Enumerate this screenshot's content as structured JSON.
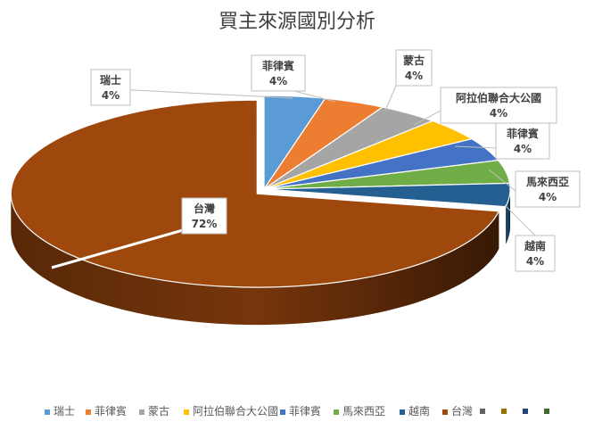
{
  "chart_data": {
    "type": "pie",
    "title": "買主來源國別分析",
    "slices": [
      {
        "label": "瑞士",
        "value": 4,
        "value_label": "4%",
        "color": "#5B9BD5"
      },
      {
        "label": "菲律賓",
        "value": 4,
        "value_label": "4%",
        "color": "#ED7D31"
      },
      {
        "label": "蒙古",
        "value": 4,
        "value_label": "4%",
        "color": "#A5A5A5"
      },
      {
        "label": "阿拉伯聯合大公國",
        "value": 4,
        "value_label": "4%",
        "color": "#FFC000"
      },
      {
        "label": "菲律賓",
        "value": 4,
        "value_label": "4%",
        "color": "#4472C4"
      },
      {
        "label": "馬來西亞",
        "value": 4,
        "value_label": "4%",
        "color": "#70AD47"
      },
      {
        "label": "越南",
        "value": 4,
        "value_label": "4%",
        "color": "#255E91"
      },
      {
        "label": "台灣",
        "value": 72,
        "value_label": "72%",
        "color": "#9E480E"
      }
    ],
    "legend_position": "bottom",
    "legend_extra_swatches": [
      "#636363",
      "#997300",
      "#264478",
      "#43682B"
    ]
  }
}
